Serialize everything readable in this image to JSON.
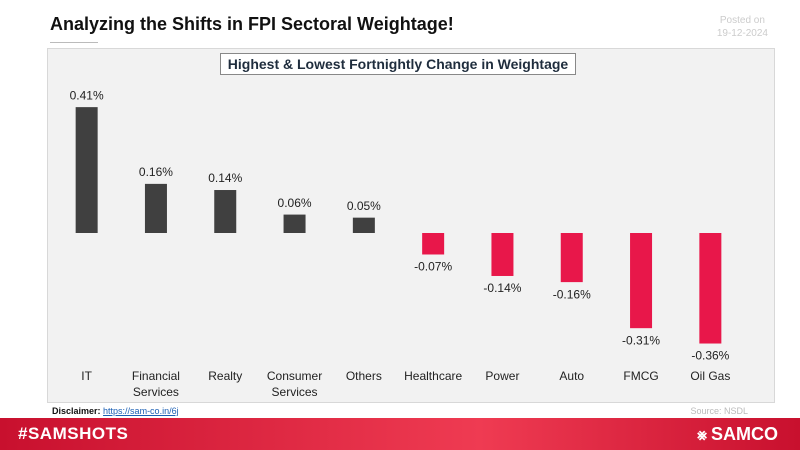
{
  "chart_data": {
    "type": "bar",
    "title": "Analyzing the Shifts in FPI Sectoral Weightage!",
    "subtitle": "Highest & Lowest Fortnightly Change in Weightage",
    "posted_label": "Posted on",
    "posted_date": "19-12-2024",
    "categories": [
      "IT",
      "Financial Services",
      "Realty",
      "Consumer Services",
      "Others",
      "Healthcare",
      "Power",
      "Auto",
      "FMCG",
      "Oil Gas"
    ],
    "values": [
      0.41,
      0.16,
      0.14,
      0.06,
      0.05,
      -0.07,
      -0.14,
      -0.16,
      -0.31,
      -0.36
    ],
    "value_labels": [
      "0.41%",
      "0.16%",
      "0.14%",
      "0.06%",
      "0.05%",
      "-0.07%",
      "-0.14%",
      "-0.16%",
      "-0.31%",
      "-0.36%"
    ],
    "positive_color": "#404040",
    "negative_color": "#e8174a",
    "disclaimer_label": "Disclaimer:",
    "disclaimer_link": "https://sam-co.in/6j",
    "source": "Source: NSDL",
    "hashtag": "#SAMSHOTS",
    "brand": "SAMCO"
  }
}
